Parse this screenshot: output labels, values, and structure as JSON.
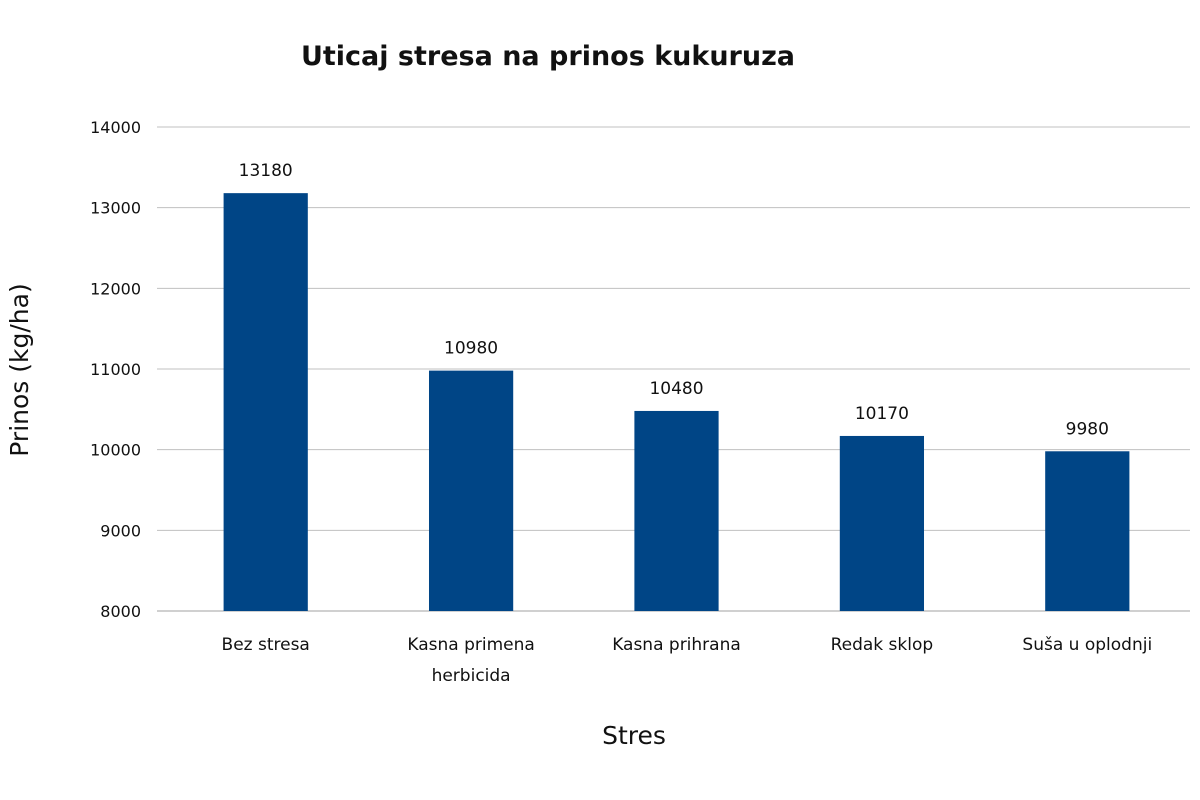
{
  "chart_data": {
    "type": "bar",
    "title": "Uticaj stresa na prinos kukuruza",
    "xlabel": "Stres",
    "ylabel": "Prinos (kg/ha)",
    "categories": [
      [
        "Bez stresa"
      ],
      [
        "Kasna primena",
        "herbicida"
      ],
      [
        "Kasna prihrana"
      ],
      [
        "Redak sklop"
      ],
      [
        "Suša u oplodnji"
      ]
    ],
    "values": [
      13180,
      10980,
      10480,
      10170,
      9980
    ],
    "data_labels": [
      "13180",
      "10980",
      "10480",
      "10170",
      "9980"
    ],
    "ylim": [
      8000,
      14000
    ],
    "yticks": [
      8000,
      9000,
      10000,
      11000,
      12000,
      13000,
      14000
    ],
    "ytick_labels": [
      "8000",
      "9000",
      "10000",
      "11000",
      "12000",
      "13000",
      "14000"
    ],
    "grid": true,
    "legend": "none",
    "colors": {
      "bar": "#004586",
      "grid": "#c0c0c0",
      "axis": "#a0a0a0"
    }
  }
}
